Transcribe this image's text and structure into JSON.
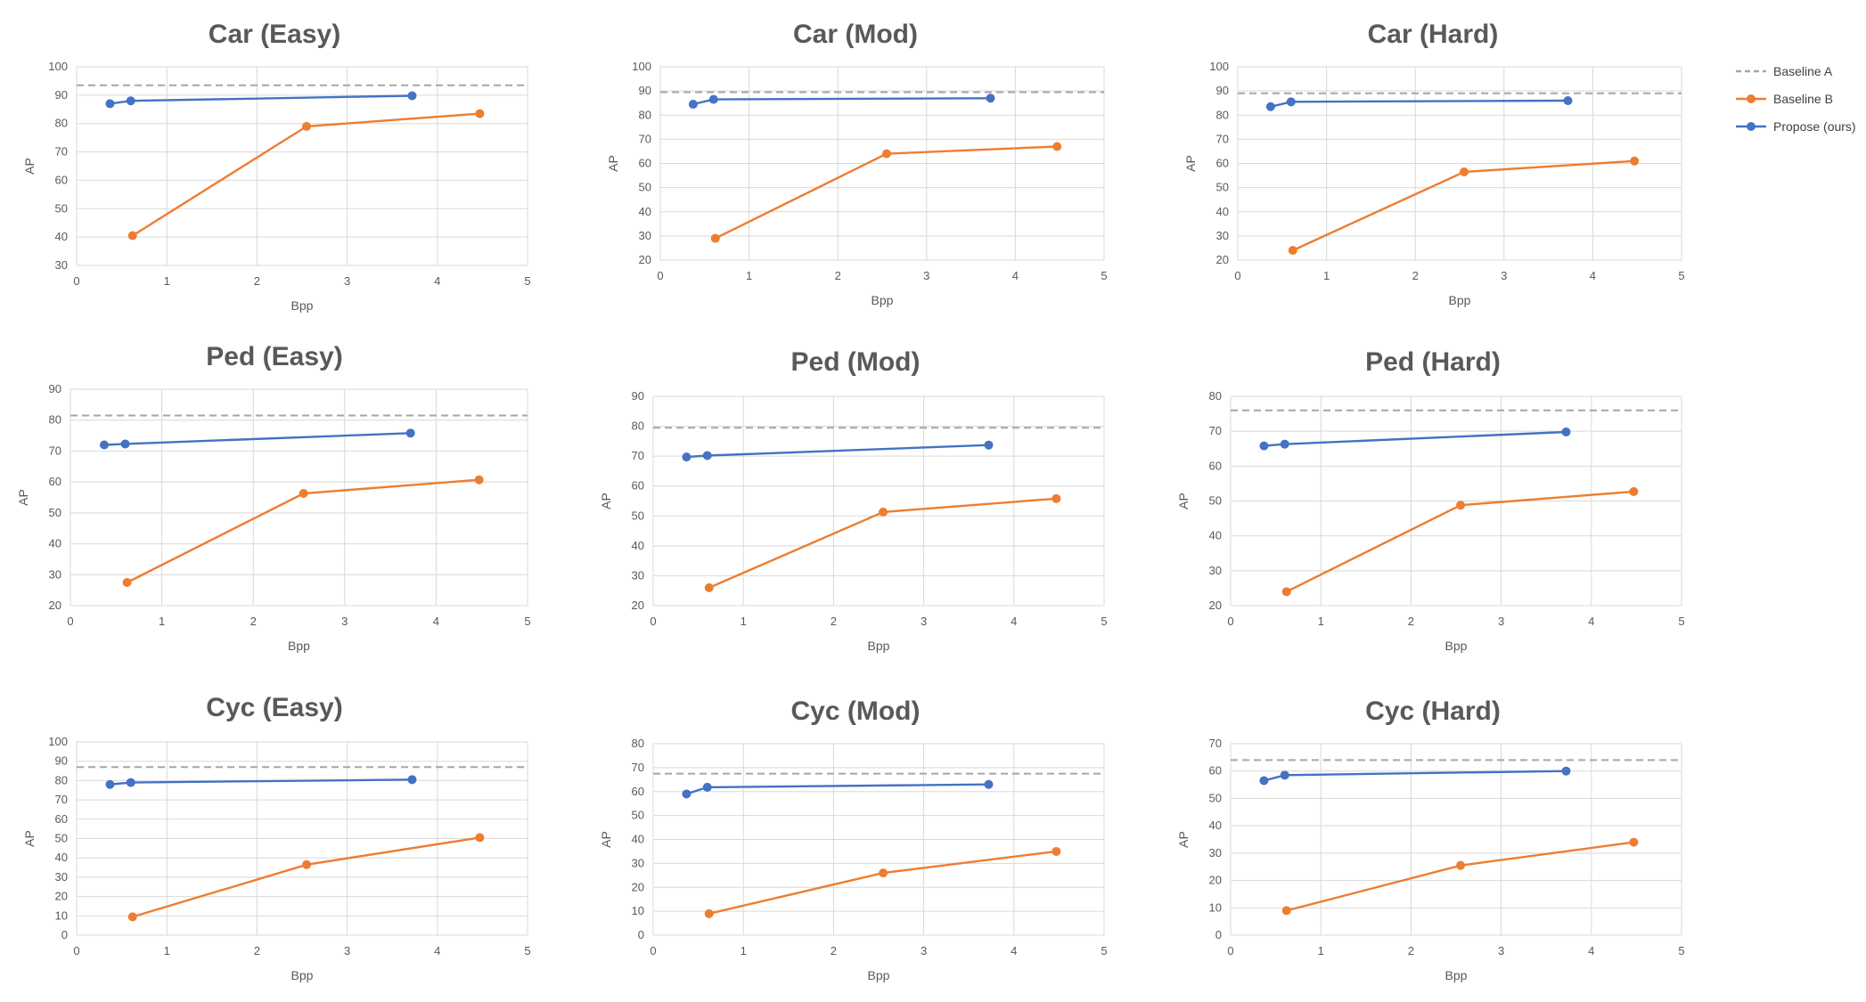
{
  "legend": [
    {
      "label": "Baseline A",
      "color": "#a6a6a6",
      "style": "dashed",
      "marker": false
    },
    {
      "label": "Baseline B",
      "color": "#ed7d31",
      "style": "solid",
      "marker": true
    },
    {
      "label": "Propose (ours)",
      "color": "#4472c4",
      "style": "solid",
      "marker": true
    }
  ],
  "chart_data": [
    {
      "type": "line",
      "title": "Car (Easy)",
      "xlabel": "Bpp",
      "ylabel": "AP",
      "xlim": [
        0,
        5
      ],
      "ylim": [
        30,
        100
      ],
      "ystep": 10,
      "grid": true,
      "legend_position": "right",
      "series": [
        {
          "name": "Baseline A",
          "x": [
            0,
            5
          ],
          "y": [
            93.5,
            93.5
          ]
        },
        {
          "name": "Baseline B",
          "x": [
            0.62,
            2.55,
            4.47
          ],
          "y": [
            40.5,
            79.0,
            83.5
          ]
        },
        {
          "name": "Propose (ours)",
          "x": [
            0.37,
            0.6,
            3.72
          ],
          "y": [
            87.0,
            88.0,
            89.8
          ]
        }
      ]
    },
    {
      "type": "line",
      "title": "Car (Mod)",
      "xlabel": "Bpp",
      "ylabel": "AP",
      "xlim": [
        0,
        5
      ],
      "ylim": [
        20,
        100
      ],
      "ystep": 10,
      "grid": true,
      "legend_position": "right",
      "series": [
        {
          "name": "Baseline A",
          "x": [
            0,
            5
          ],
          "y": [
            89.5,
            89.5
          ]
        },
        {
          "name": "Baseline B",
          "x": [
            0.62,
            2.55,
            4.47
          ],
          "y": [
            29.0,
            64.0,
            67.0
          ]
        },
        {
          "name": "Propose (ours)",
          "x": [
            0.37,
            0.6,
            3.72
          ],
          "y": [
            84.5,
            86.5,
            87.0
          ]
        }
      ]
    },
    {
      "type": "line",
      "title": "Car (Hard)",
      "xlabel": "Bpp",
      "ylabel": "AP",
      "xlim": [
        0,
        5
      ],
      "ylim": [
        20,
        100
      ],
      "ystep": 10,
      "grid": true,
      "legend_position": "right",
      "series": [
        {
          "name": "Baseline A",
          "x": [
            0,
            5
          ],
          "y": [
            89.0,
            89.0
          ]
        },
        {
          "name": "Baseline B",
          "x": [
            0.62,
            2.55,
            4.47
          ],
          "y": [
            24.0,
            56.5,
            61.0
          ]
        },
        {
          "name": "Propose (ours)",
          "x": [
            0.37,
            0.6,
            3.72
          ],
          "y": [
            83.5,
            85.5,
            86.0
          ]
        }
      ]
    },
    {
      "type": "line",
      "title": "Ped (Easy)",
      "xlabel": "Bpp",
      "ylabel": "AP",
      "xlim": [
        0,
        5
      ],
      "ylim": [
        20,
        90
      ],
      "ystep": 10,
      "grid": true,
      "legend_position": "right",
      "series": [
        {
          "name": "Baseline A",
          "x": [
            0,
            5
          ],
          "y": [
            81.5,
            81.5
          ]
        },
        {
          "name": "Baseline B",
          "x": [
            0.62,
            2.55,
            4.47
          ],
          "y": [
            27.5,
            56.3,
            60.7
          ]
        },
        {
          "name": "Propose (ours)",
          "x": [
            0.37,
            0.6,
            3.72
          ],
          "y": [
            72.0,
            72.3,
            75.8
          ]
        }
      ]
    },
    {
      "type": "line",
      "title": "Ped (Mod)",
      "xlabel": "Bpp",
      "ylabel": "AP",
      "xlim": [
        0,
        5
      ],
      "ylim": [
        20,
        90
      ],
      "ystep": 10,
      "grid": true,
      "legend_position": "right",
      "series": [
        {
          "name": "Baseline A",
          "x": [
            0,
            5
          ],
          "y": [
            79.5,
            79.5
          ]
        },
        {
          "name": "Baseline B",
          "x": [
            0.62,
            2.55,
            4.47
          ],
          "y": [
            26.0,
            51.3,
            55.8
          ]
        },
        {
          "name": "Propose (ours)",
          "x": [
            0.37,
            0.6,
            3.72
          ],
          "y": [
            69.7,
            70.2,
            73.7
          ]
        }
      ]
    },
    {
      "type": "line",
      "title": "Ped (Hard)",
      "xlabel": "Bpp",
      "ylabel": "AP",
      "xlim": [
        0,
        5
      ],
      "ylim": [
        20,
        80
      ],
      "ystep": 10,
      "grid": true,
      "legend_position": "right",
      "series": [
        {
          "name": "Baseline A",
          "x": [
            0,
            5
          ],
          "y": [
            76.0,
            76.0
          ]
        },
        {
          "name": "Baseline B",
          "x": [
            0.62,
            2.55,
            4.47
          ],
          "y": [
            24.0,
            48.8,
            52.7
          ]
        },
        {
          "name": "Propose (ours)",
          "x": [
            0.37,
            0.6,
            3.72
          ],
          "y": [
            65.8,
            66.3,
            69.8
          ]
        }
      ]
    },
    {
      "type": "line",
      "title": "Cyc (Easy)",
      "xlabel": "Bpp",
      "ylabel": "AP",
      "xlim": [
        0,
        5
      ],
      "ylim": [
        0,
        100
      ],
      "ystep": 10,
      "grid": true,
      "legend_position": "right",
      "series": [
        {
          "name": "Baseline A",
          "x": [
            0,
            5
          ],
          "y": [
            87.0,
            87.0
          ]
        },
        {
          "name": "Baseline B",
          "x": [
            0.62,
            2.55,
            4.47
          ],
          "y": [
            9.5,
            36.5,
            50.5
          ]
        },
        {
          "name": "Propose (ours)",
          "x": [
            0.37,
            0.6,
            3.72
          ],
          "y": [
            78.0,
            79.0,
            80.5
          ]
        }
      ]
    },
    {
      "type": "line",
      "title": "Cyc (Mod)",
      "xlabel": "Bpp",
      "ylabel": "AP",
      "xlim": [
        0,
        5
      ],
      "ylim": [
        0,
        80
      ],
      "ystep": 10,
      "grid": true,
      "legend_position": "right",
      "series": [
        {
          "name": "Baseline A",
          "x": [
            0,
            5
          ],
          "y": [
            67.5,
            67.5
          ]
        },
        {
          "name": "Baseline B",
          "x": [
            0.62,
            2.55,
            4.47
          ],
          "y": [
            9.0,
            26.0,
            35.0
          ]
        },
        {
          "name": "Propose (ours)",
          "x": [
            0.37,
            0.6,
            3.72
          ],
          "y": [
            59.0,
            61.8,
            63.0
          ]
        }
      ]
    },
    {
      "type": "line",
      "title": "Cyc (Hard)",
      "xlabel": "Bpp",
      "ylabel": "AP",
      "xlim": [
        0,
        5
      ],
      "ylim": [
        0,
        70
      ],
      "ystep": 10,
      "grid": true,
      "legend_position": "right",
      "series": [
        {
          "name": "Baseline A",
          "x": [
            0,
            5
          ],
          "y": [
            64.0,
            64.0
          ]
        },
        {
          "name": "Baseline B",
          "x": [
            0.62,
            2.55,
            4.47
          ],
          "y": [
            9.0,
            25.5,
            34.0
          ]
        },
        {
          "name": "Propose (ours)",
          "x": [
            0.37,
            0.6,
            3.72
          ],
          "y": [
            56.5,
            58.5,
            60.0
          ]
        }
      ]
    }
  ]
}
